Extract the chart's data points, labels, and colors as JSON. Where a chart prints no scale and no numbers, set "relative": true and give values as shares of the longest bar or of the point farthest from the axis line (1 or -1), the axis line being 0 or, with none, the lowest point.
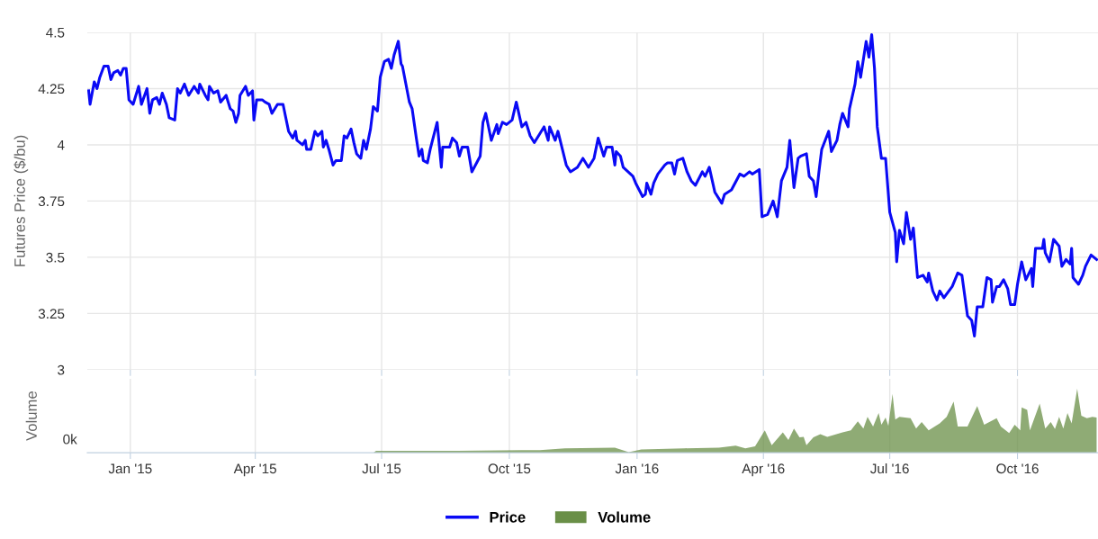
{
  "chart_data": [
    {
      "type": "line",
      "ylabel": "Futures Price ($/bu)",
      "xlim": [
        "2014-12-01",
        "2016-11-28"
      ],
      "ylim": [
        3,
        4.5
      ],
      "yticks": [
        3,
        3.25,
        3.5,
        3.75,
        4,
        4.25,
        4.5
      ],
      "xticks": [
        {
          "value": "2015-01-01",
          "label": null
        },
        {
          "value": "2015-04-01",
          "label": null
        },
        {
          "value": "2015-07-01",
          "label": null
        },
        {
          "value": "2015-10-01",
          "label": null
        },
        {
          "value": "2016-01-01",
          "label": null
        },
        {
          "value": "2016-04-01",
          "label": null
        },
        {
          "value": "2016-07-01",
          "label": null
        },
        {
          "value": "2016-10-01",
          "label": null
        }
      ],
      "tick_labels": "y",
      "grid": true,
      "legend": "bottom",
      "marker": "none",
      "line_style": "solid",
      "x": [
        "2014-12-02",
        "2014-12-03",
        "2014-12-06",
        "2014-12-08",
        "2014-12-10",
        "2014-12-13",
        "2014-12-16",
        "2014-12-18",
        "2014-12-20",
        "2014-12-23",
        "2014-12-25",
        "2014-12-27",
        "2014-12-29",
        "2014-12-31",
        "2015-01-03",
        "2015-01-07",
        "2015-01-09",
        "2015-01-13",
        "2015-01-15",
        "2015-01-17",
        "2015-01-20",
        "2015-01-22",
        "2015-01-24",
        "2015-01-27",
        "2015-01-29",
        "2015-02-02",
        "2015-02-04",
        "2015-02-06",
        "2015-02-09",
        "2015-02-12",
        "2015-02-16",
        "2015-02-19",
        "2015-02-20",
        "2015-02-24",
        "2015-02-26",
        "2015-02-27",
        "2015-03-02",
        "2015-03-05",
        "2015-03-07",
        "2015-03-11",
        "2015-03-14",
        "2015-03-16",
        "2015-03-18",
        "2015-03-20",
        "2015-03-21",
        "2015-03-25",
        "2015-03-27",
        "2015-03-30",
        "2015-03-31",
        "2015-04-02",
        "2015-04-06",
        "2015-04-08",
        "2015-04-11",
        "2015-04-13",
        "2015-04-17",
        "2015-04-21",
        "2015-04-23",
        "2015-04-25",
        "2015-04-28",
        "2015-04-30",
        "2015-05-01",
        "2015-05-05",
        "2015-05-07",
        "2015-05-08",
        "2015-05-11",
        "2015-05-14",
        "2015-05-16",
        "2015-05-19",
        "2015-05-20",
        "2015-05-22",
        "2015-05-24",
        "2015-05-27",
        "2015-05-29",
        "2015-06-02",
        "2015-06-04",
        "2015-06-06",
        "2015-06-09",
        "2015-06-11",
        "2015-06-13",
        "2015-06-16",
        "2015-06-18",
        "2015-06-20",
        "2015-06-23",
        "2015-06-25",
        "2015-06-28",
        "2015-06-30",
        "2015-07-03",
        "2015-07-06",
        "2015-07-08",
        "2015-07-10",
        "2015-07-13",
        "2015-07-15",
        "2015-07-16",
        "2015-07-21",
        "2015-07-23",
        "2015-07-26",
        "2015-07-28",
        "2015-07-30",
        "2015-07-31",
        "2015-08-03",
        "2015-08-05",
        "2015-08-10",
        "2015-08-13",
        "2015-08-14",
        "2015-08-19",
        "2015-08-21",
        "2015-08-24",
        "2015-08-26",
        "2015-08-28",
        "2015-09-01",
        "2015-09-04",
        "2015-09-10",
        "2015-09-12",
        "2015-09-14",
        "2015-09-18",
        "2015-09-22",
        "2015-09-23",
        "2015-09-26",
        "2015-09-29",
        "2015-10-03",
        "2015-10-06",
        "2015-10-10",
        "2015-10-13",
        "2015-10-16",
        "2015-10-19",
        "2015-10-22",
        "2015-10-26",
        "2015-10-29",
        "2015-10-30",
        "2015-11-03",
        "2015-11-05",
        "2015-11-09",
        "2015-11-11",
        "2015-11-14",
        "2015-11-19",
        "2015-11-23",
        "2015-11-27",
        "2015-12-01",
        "2015-12-04",
        "2015-12-08",
        "2015-12-10",
        "2015-12-14",
        "2015-12-16",
        "2015-12-17",
        "2015-12-20",
        "2015-12-22",
        "2015-12-29",
        "2015-12-31",
        "2016-01-05",
        "2016-01-07",
        "2016-01-08",
        "2016-01-11",
        "2016-01-13",
        "2016-01-16",
        "2016-01-21",
        "2016-01-23",
        "2016-01-26",
        "2016-01-28",
        "2016-01-30",
        "2016-02-03",
        "2016-02-06",
        "2016-02-09",
        "2016-02-12",
        "2016-02-17",
        "2016-02-19",
        "2016-02-22",
        "2016-02-26",
        "2016-03-02",
        "2016-03-04",
        "2016-03-09",
        "2016-03-15",
        "2016-03-18",
        "2016-03-22",
        "2016-03-24",
        "2016-03-29",
        "2016-03-31",
        "2016-04-04",
        "2016-04-08",
        "2016-04-11",
        "2016-04-14",
        "2016-04-18",
        "2016-04-20",
        "2016-04-23",
        "2016-04-26",
        "2016-04-28",
        "2016-05-02",
        "2016-05-04",
        "2016-05-07",
        "2016-05-09",
        "2016-05-11",
        "2016-05-13",
        "2016-05-18",
        "2016-05-20",
        "2016-05-24",
        "2016-05-26",
        "2016-05-28",
        "2016-06-01",
        "2016-06-02",
        "2016-06-06",
        "2016-06-08",
        "2016-06-10",
        "2016-06-14",
        "2016-06-16",
        "2016-06-18",
        "2016-06-20",
        "2016-06-22",
        "2016-06-25",
        "2016-06-28",
        "2016-07-01",
        "2016-07-05",
        "2016-07-06",
        "2016-07-08",
        "2016-07-11",
        "2016-07-13",
        "2016-07-16",
        "2016-07-18",
        "2016-07-21",
        "2016-07-25",
        "2016-07-28",
        "2016-07-29",
        "2016-08-01",
        "2016-08-04",
        "2016-08-06",
        "2016-08-09",
        "2016-08-15",
        "2016-08-19",
        "2016-08-22",
        "2016-08-26",
        "2016-08-29",
        "2016-08-31",
        "2016-09-02",
        "2016-09-06",
        "2016-09-09",
        "2016-09-12",
        "2016-09-13",
        "2016-09-16",
        "2016-09-18",
        "2016-09-21",
        "2016-09-24",
        "2016-09-26",
        "2016-09-29",
        "2016-10-01",
        "2016-10-04",
        "2016-10-07",
        "2016-10-11",
        "2016-10-12",
        "2016-10-14",
        "2016-10-19",
        "2016-10-20",
        "2016-10-21",
        "2016-10-24",
        "2016-10-27",
        "2016-10-31",
        "2016-11-02",
        "2016-11-05",
        "2016-11-08",
        "2016-11-09",
        "2016-11-10",
        "2016-11-14",
        "2016-11-17",
        "2016-11-19",
        "2016-11-23",
        "2016-11-27"
      ],
      "series": [
        {
          "name": "Price",
          "color": "#0a0af5",
          "values": [
            4.24,
            4.18,
            4.28,
            4.25,
            4.3,
            4.35,
            4.35,
            4.29,
            4.32,
            4.33,
            4.31,
            4.34,
            4.34,
            4.2,
            4.18,
            4.26,
            4.18,
            4.25,
            4.14,
            4.2,
            4.21,
            4.18,
            4.23,
            4.18,
            4.12,
            4.11,
            4.25,
            4.23,
            4.27,
            4.22,
            4.26,
            4.23,
            4.27,
            4.22,
            4.2,
            4.26,
            4.23,
            4.24,
            4.19,
            4.22,
            4.16,
            4.15,
            4.1,
            4.14,
            4.22,
            4.26,
            4.22,
            4.24,
            4.11,
            4.2,
            4.2,
            4.19,
            4.18,
            4.14,
            4.18,
            4.18,
            4.12,
            4.06,
            4.03,
            4.06,
            4.02,
            4.0,
            4.02,
            3.98,
            3.98,
            4.06,
            4.04,
            4.06,
            3.99,
            4.02,
            3.98,
            3.91,
            3.93,
            3.93,
            4.04,
            4.03,
            4.07,
            4.01,
            3.96,
            3.94,
            4.02,
            3.98,
            4.07,
            4.17,
            4.15,
            4.3,
            4.37,
            4.38,
            4.34,
            4.4,
            4.46,
            4.36,
            4.35,
            4.19,
            4.16,
            4.03,
            3.95,
            3.98,
            3.93,
            3.92,
            3.98,
            4.1,
            3.9,
            3.99,
            3.99,
            4.03,
            4.01,
            3.95,
            3.99,
            3.99,
            3.88,
            3.95,
            4.1,
            4.14,
            4.02,
            4.09,
            4.05,
            4.1,
            4.09,
            4.11,
            4.19,
            4.08,
            4.1,
            4.04,
            4.01,
            4.04,
            4.08,
            4.02,
            4.08,
            4.02,
            4.06,
            3.96,
            3.91,
            3.88,
            3.9,
            3.94,
            3.9,
            3.94,
            4.03,
            3.95,
            3.99,
            3.99,
            3.91,
            3.97,
            3.95,
            3.9,
            3.86,
            3.83,
            3.77,
            3.78,
            3.83,
            3.78,
            3.83,
            3.87,
            3.91,
            3.92,
            3.92,
            3.87,
            3.93,
            3.94,
            3.88,
            3.84,
            3.82,
            3.88,
            3.86,
            3.9,
            3.79,
            3.74,
            3.78,
            3.8,
            3.87,
            3.86,
            3.88,
            3.87,
            3.89,
            3.68,
            3.69,
            3.75,
            3.68,
            3.84,
            3.9,
            4.02,
            3.81,
            3.94,
            3.95,
            3.96,
            3.86,
            3.84,
            3.77,
            3.88,
            3.98,
            4.06,
            3.97,
            4.02,
            4.09,
            4.14,
            4.08,
            4.16,
            4.27,
            4.37,
            4.3,
            4.46,
            4.39,
            4.49,
            4.34,
            4.08,
            3.94,
            3.94,
            3.7,
            3.61,
            3.48,
            3.62,
            3.56,
            3.7,
            3.58,
            3.63,
            3.41,
            3.42,
            3.39,
            3.43,
            3.35,
            3.31,
            3.35,
            3.32,
            3.37,
            3.43,
            3.42,
            3.24,
            3.22,
            3.15,
            3.28,
            3.28,
            3.41,
            3.4,
            3.3,
            3.37,
            3.37,
            3.4,
            3.36,
            3.29,
            3.29,
            3.38,
            3.48,
            3.4,
            3.45,
            3.37,
            3.54,
            3.54,
            3.58,
            3.52,
            3.48,
            3.58,
            3.55,
            3.46,
            3.49,
            3.47,
            3.54,
            3.41,
            3.38,
            3.42,
            3.46,
            3.51,
            3.49
          ]
        }
      ]
    },
    {
      "type": "area",
      "ylabel": "Volume",
      "relative": true,
      "xlim": [
        "2014-12-01",
        "2016-11-28"
      ],
      "xticks": [
        {
          "value": "2015-01-01",
          "label": "Jan '15"
        },
        {
          "value": "2015-04-01",
          "label": "Apr '15"
        },
        {
          "value": "2015-07-01",
          "label": "Jul '15"
        },
        {
          "value": "2015-10-01",
          "label": "Oct '15"
        },
        {
          "value": "2016-01-01",
          "label": "Jan '16"
        },
        {
          "value": "2016-04-01",
          "label": "Apr '16"
        },
        {
          "value": "2016-07-01",
          "label": "Jul '16"
        },
        {
          "value": "2016-10-01",
          "label": "Oct '16"
        }
      ],
      "grid": "x",
      "legend": "bottom",
      "annotations": [
        "0k"
      ],
      "x": [
        "2014-12-02",
        "2015-06-25",
        "2015-06-27",
        "2015-08-19",
        "2015-10-10",
        "2015-10-23",
        "2015-11-10",
        "2015-12-16",
        "2015-12-26",
        "2016-01-04",
        "2016-02-04",
        "2016-02-29",
        "2016-03-12",
        "2016-03-19",
        "2016-03-26",
        "2016-04-02",
        "2016-04-07",
        "2016-04-15",
        "2016-04-19",
        "2016-04-23",
        "2016-04-27",
        "2016-04-30",
        "2016-05-02",
        "2016-05-07",
        "2016-05-12",
        "2016-05-17",
        "2016-05-28",
        "2016-06-03",
        "2016-06-08",
        "2016-06-12",
        "2016-06-15",
        "2016-06-19",
        "2016-06-23",
        "2016-06-25",
        "2016-06-28",
        "2016-06-30",
        "2016-07-03",
        "2016-07-05",
        "2016-07-08",
        "2016-07-16",
        "2016-07-20",
        "2016-07-24",
        "2016-07-29",
        "2016-08-06",
        "2016-08-11",
        "2016-08-16",
        "2016-08-19",
        "2016-08-26",
        "2016-09-02",
        "2016-09-07",
        "2016-09-16",
        "2016-09-19",
        "2016-09-25",
        "2016-09-29",
        "2016-10-03",
        "2016-10-04",
        "2016-10-08",
        "2016-10-10",
        "2016-10-17",
        "2016-10-21",
        "2016-10-25",
        "2016-10-28",
        "2016-10-31",
        "2016-11-03",
        "2016-11-06",
        "2016-11-09",
        "2016-11-13",
        "2016-11-16",
        "2016-11-20",
        "2016-11-24",
        "2016-11-27"
      ],
      "series": [
        {
          "name": "Volume",
          "color": "#6a8f47",
          "values": [
            0,
            0,
            0.03,
            0.03,
            0.04,
            0.04,
            0.07,
            0.08,
            0.01,
            0.05,
            0.07,
            0.08,
            0.11,
            0.07,
            0.1,
            0.35,
            0.12,
            0.32,
            0.2,
            0.38,
            0.24,
            0.25,
            0.12,
            0.24,
            0.29,
            0.25,
            0.32,
            0.35,
            0.49,
            0.38,
            0.56,
            0.41,
            0.62,
            0.44,
            0.55,
            0.42,
            0.92,
            0.52,
            0.56,
            0.54,
            0.38,
            0.48,
            0.35,
            0.46,
            0.56,
            0.8,
            0.41,
            0.41,
            0.73,
            0.44,
            0.54,
            0.41,
            0.31,
            0.44,
            0.35,
            0.71,
            0.67,
            0.35,
            0.77,
            0.38,
            0.48,
            0.37,
            0.56,
            0.38,
            0.62,
            0.46,
            1.0,
            0.58,
            0.54,
            0.56,
            0.55
          ]
        }
      ]
    }
  ]
}
